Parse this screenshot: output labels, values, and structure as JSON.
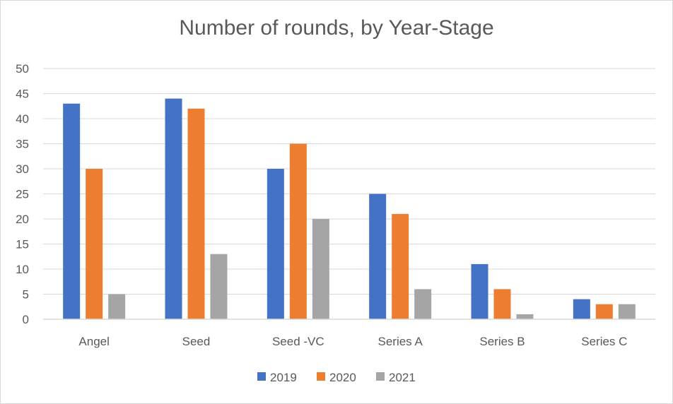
{
  "chart_data": {
    "type": "bar",
    "title": "Number of rounds, by Year-Stage",
    "xlabel": "",
    "ylabel": "",
    "categories": [
      "Angel",
      "Seed",
      "Seed -VC",
      "Series A",
      "Series B",
      "Series C"
    ],
    "series": [
      {
        "name": "2019",
        "color": "#4472c4",
        "values": [
          43,
          44,
          30,
          25,
          11,
          4
        ]
      },
      {
        "name": "2020",
        "color": "#ed7d31",
        "values": [
          30,
          42,
          35,
          21,
          6,
          3
        ]
      },
      {
        "name": "2021",
        "color": "#a5a5a5",
        "values": [
          5,
          13,
          20,
          6,
          1,
          3
        ]
      }
    ],
    "ylim": [
      0,
      50
    ],
    "yticks": [
      "0",
      "5",
      "10",
      "15",
      "20",
      "25",
      "30",
      "35",
      "40",
      "45",
      "50"
    ],
    "grid": true,
    "legend_position": "bottom",
    "gridline_color": "#d9d9d9"
  }
}
